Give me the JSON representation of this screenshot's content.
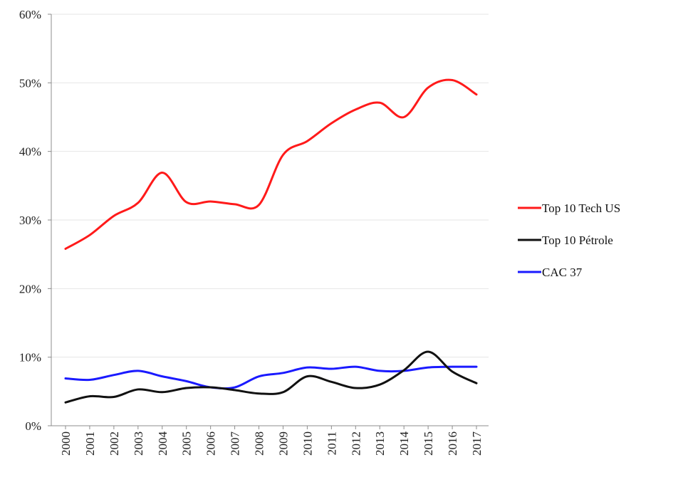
{
  "chart_data": {
    "type": "line",
    "title": "",
    "xlabel": "",
    "ylabel": "",
    "x": [
      "2000",
      "2001",
      "2002",
      "2003",
      "2004",
      "2005",
      "2006",
      "2007",
      "2008",
      "2009",
      "2010",
      "2011",
      "2012",
      "2013",
      "2014",
      "2015",
      "2016",
      "2017"
    ],
    "y_ticks": [
      "0%",
      "10%",
      "20%",
      "30%",
      "40%",
      "50%",
      "60%"
    ],
    "ylim": [
      0,
      60
    ],
    "y_unit": "%",
    "grid": true,
    "legend_position": "right",
    "series": [
      {
        "name": "Top 10 Tech US",
        "color": "#ff1a1a",
        "values": [
          25.8,
          27.8,
          30.6,
          32.5,
          36.9,
          32.6,
          32.7,
          32.3,
          32.2,
          39.5,
          41.5,
          44.1,
          46.1,
          47.1,
          45.0,
          49.3,
          50.4,
          48.3
        ]
      },
      {
        "name": "Top 10 Pétrole",
        "color": "#111111",
        "values": [
          3.4,
          4.3,
          4.2,
          5.3,
          4.9,
          5.5,
          5.6,
          5.2,
          4.7,
          4.9,
          7.2,
          6.4,
          5.5,
          6.0,
          8.1,
          10.8,
          7.9,
          6.2
        ]
      },
      {
        "name": "CAC 37",
        "color": "#1a1aff",
        "values": [
          6.9,
          6.7,
          7.4,
          8.0,
          7.2,
          6.5,
          5.6,
          5.6,
          7.2,
          7.7,
          8.5,
          8.3,
          8.6,
          8.0,
          8.0,
          8.5,
          8.6,
          8.6
        ]
      }
    ]
  }
}
